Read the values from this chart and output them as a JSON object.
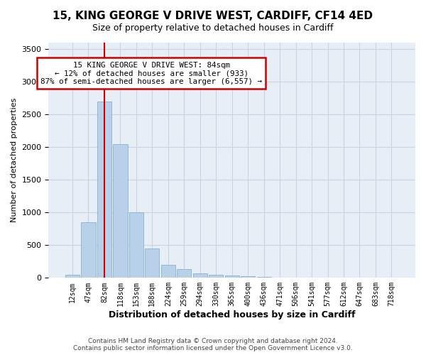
{
  "title_line1": "15, KING GEORGE V DRIVE WEST, CARDIFF, CF14 4ED",
  "title_line2": "Size of property relative to detached houses in Cardiff",
  "xlabel": "Distribution of detached houses by size in Cardiff",
  "ylabel": "Number of detached properties",
  "bar_values": [
    50,
    850,
    2700,
    2050,
    1000,
    450,
    200,
    130,
    70,
    50,
    40,
    20,
    10,
    5,
    2,
    1,
    1,
    0,
    0,
    0,
    0
  ],
  "bar_labels": [
    "12sqm",
    "47sqm",
    "82sqm",
    "118sqm",
    "153sqm",
    "188sqm",
    "224sqm",
    "259sqm",
    "294sqm",
    "330sqm",
    "365sqm",
    "400sqm",
    "436sqm",
    "471sqm",
    "506sqm",
    "541sqm",
    "577sqm",
    "612sqm",
    "647sqm",
    "683sqm",
    "718sqm"
  ],
  "ylim": [
    0,
    3600
  ],
  "yticks": [
    0,
    500,
    1000,
    1500,
    2000,
    2500,
    3000,
    3500
  ],
  "bar_color": "#b8d0e8",
  "bar_edge_color": "#7aaace",
  "grid_color": "#c8d4e4",
  "bg_color": "#e8eef6",
  "vline_x_index": 2,
  "vline_color": "#cc0000",
  "annotation_title": "15 KING GEORGE V DRIVE WEST: 84sqm",
  "annotation_line1": "← 12% of detached houses are smaller (933)",
  "annotation_line2": "87% of semi-detached houses are larger (6,557) →",
  "annotation_box_color": "#ffffff",
  "annotation_box_edge": "#cc0000",
  "footer_line1": "Contains HM Land Registry data © Crown copyright and database right 2024.",
  "footer_line2": "Contains public sector information licensed under the Open Government Licence v3.0."
}
